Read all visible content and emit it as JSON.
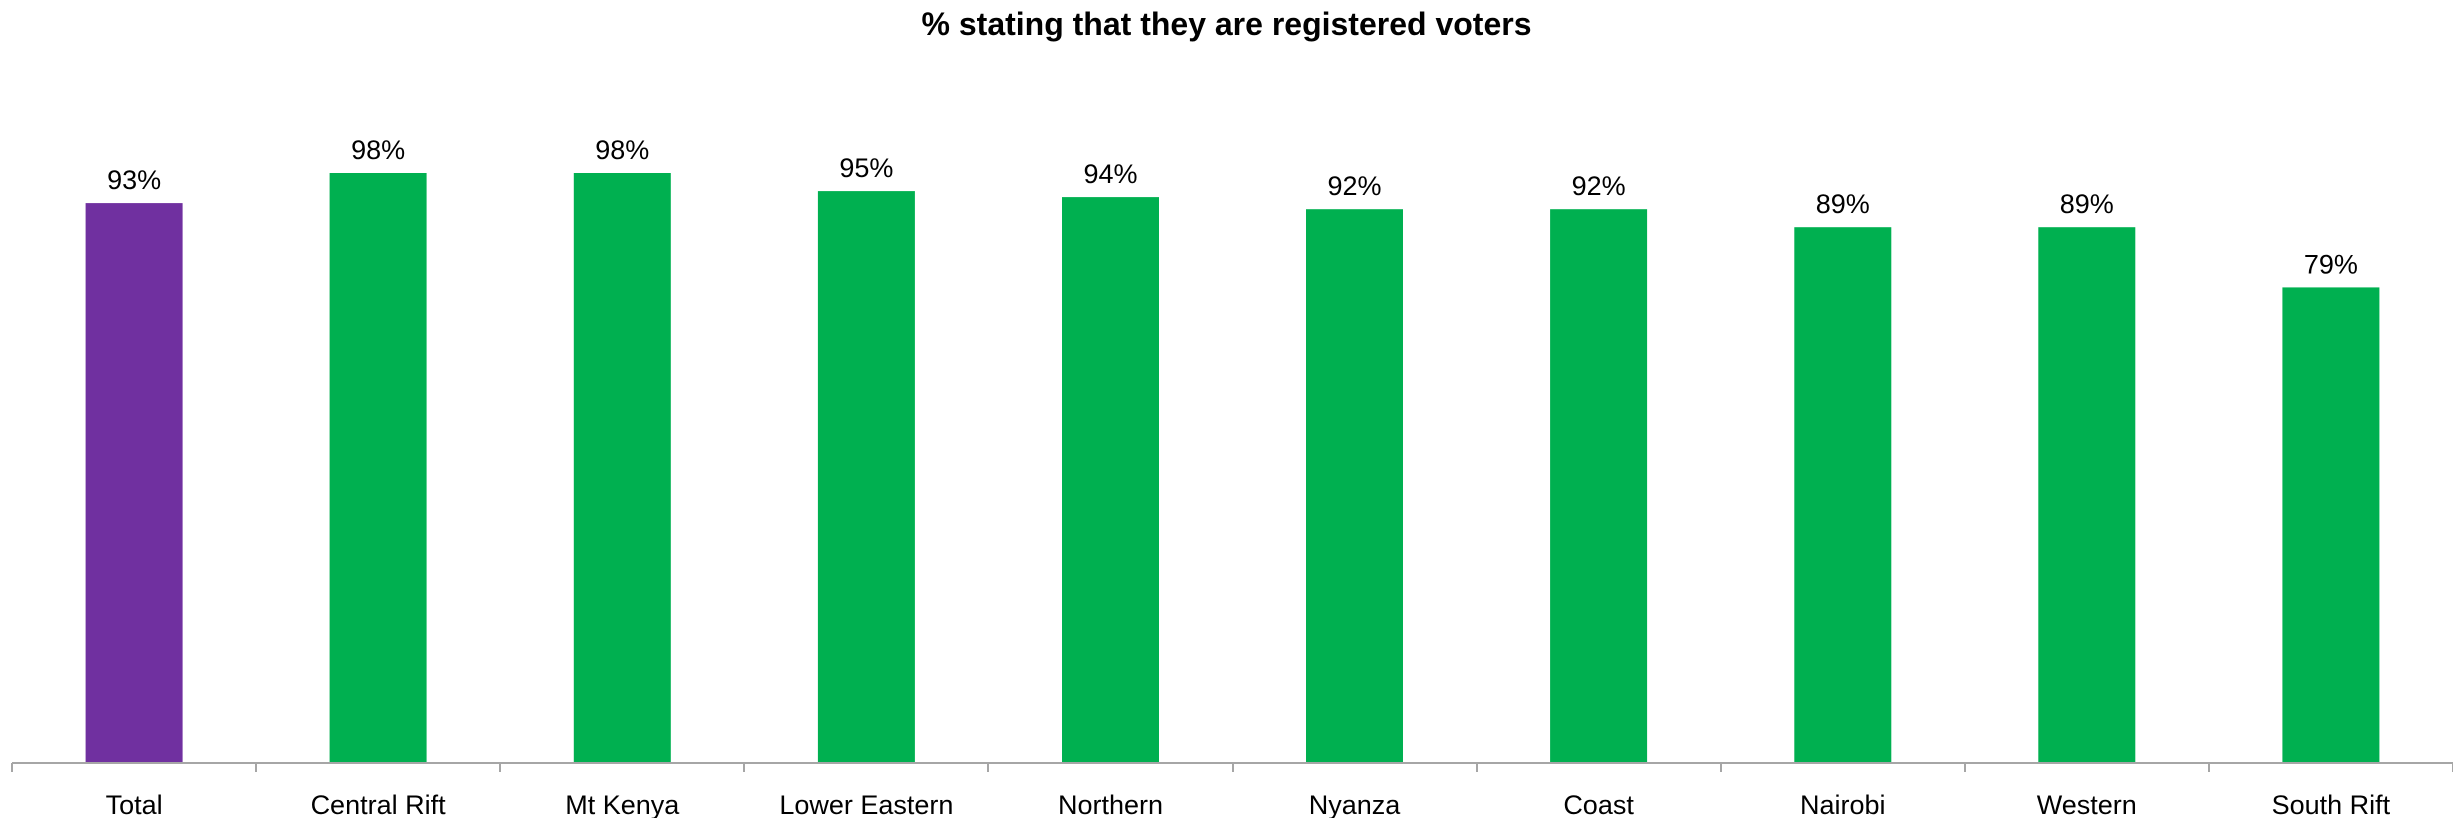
{
  "chart_data": {
    "type": "bar",
    "title": "% stating that they are registered voters",
    "xlabel": "",
    "ylabel": "",
    "categories": [
      "Total",
      "Central Rift",
      "Mt Kenya",
      "Lower Eastern",
      "Northern",
      "Nyanza",
      "Coast",
      "Nairobi",
      "Western",
      "South Rift"
    ],
    "values": [
      93,
      98,
      98,
      95,
      94,
      92,
      92,
      89,
      89,
      79
    ],
    "value_labels": [
      "93%",
      "98%",
      "98%",
      "95%",
      "94%",
      "92%",
      "92%",
      "89%",
      "89%",
      "79%"
    ],
    "unit": "%",
    "ylim": [
      0,
      100
    ],
    "grid": false,
    "legend": "none",
    "colors": {
      "highlight": "#7030A0",
      "default": "#00B050",
      "axis": "#A6A6A6",
      "text": "#000000"
    },
    "highlight_index": 0
  }
}
